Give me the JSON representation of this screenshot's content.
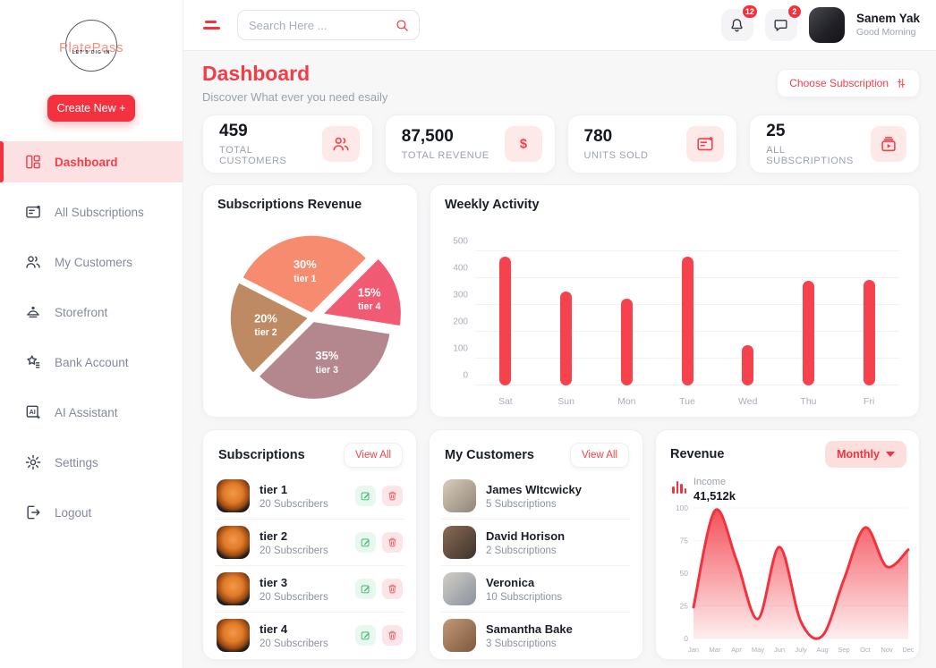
{
  "app": {
    "name": "PlatePass",
    "tagline": "LET'S DIG IN"
  },
  "colors": {
    "primary_red": "#F4323F",
    "bar_red": "#F6424C",
    "active_nav_bg": "#FBE1E2",
    "icon_bg_pink": "#FCE9E8",
    "content_bg": "#F7F7F8"
  },
  "sidebar": {
    "create_button_label": "Create New +",
    "items": [
      {
        "label": "Dashboard",
        "icon": "dashboard-icon",
        "active": true
      },
      {
        "label": "All Subscriptions",
        "icon": "list-icon",
        "active": false
      },
      {
        "label": "My Customers",
        "icon": "people-icon",
        "active": false
      },
      {
        "label": "Storefront",
        "icon": "cloche-icon",
        "active": false
      },
      {
        "label": "Bank Account",
        "icon": "star-lines-icon",
        "active": false
      },
      {
        "label": "AI Assistant",
        "icon": "ai-icon",
        "active": false
      },
      {
        "label": "Settings",
        "icon": "gear-icon",
        "active": false
      },
      {
        "label": "Logout",
        "icon": "logout-icon",
        "active": false
      }
    ]
  },
  "topbar": {
    "search_placeholder": "Search Here ...",
    "notification_badge": "12",
    "message_badge": "2",
    "user_name": "Sanem Yak",
    "user_greeting": "Good Morning"
  },
  "page_header": {
    "title": "Dashboard",
    "subtitle": "Discover What ever you need esaily",
    "action_label": "Choose Subscription"
  },
  "stats": [
    {
      "value": "459",
      "label": "TOTAL CUSTOMERS",
      "icon": "people-icon"
    },
    {
      "value": "87,500",
      "label": "TOTAL REVENUE",
      "icon": "dollar-icon"
    },
    {
      "value": "780",
      "label": "UNITS SOLD",
      "icon": "list-icon"
    },
    {
      "value": "25",
      "label": "ALL SUBSCRIPTIONS",
      "icon": "subscription-box-icon"
    }
  ],
  "chart_data": [
    {
      "id": "subscriptions-revenue",
      "type": "pie",
      "title": "Subscriptions Revenue",
      "slices": [
        {
          "label": "tier 1",
          "value": 30,
          "display": "30%",
          "color": "#F78B70"
        },
        {
          "label": "tier 4",
          "value": 15,
          "display": "15%",
          "color": "#F05A72"
        },
        {
          "label": "tier 3",
          "value": 35,
          "display": "35%",
          "color": "#B4868D"
        },
        {
          "label": "tier 2",
          "value": 20,
          "display": "20%",
          "color": "#BE8A63"
        }
      ],
      "start_angle_deg": -63,
      "labels_inside": true,
      "exploded": true
    },
    {
      "id": "weekly-activity",
      "type": "bar",
      "title": "Weekly Activity",
      "categories": [
        "Sat",
        "Sun",
        "Mon",
        "Tue",
        "Wed",
        "Thu",
        "Fri"
      ],
      "values": [
        480,
        350,
        325,
        480,
        150,
        390,
        395
      ],
      "ylim": [
        0,
        500
      ],
      "yticks": [
        0,
        100,
        200,
        300,
        400,
        500
      ],
      "bar_color": "#F6424C",
      "grid": true
    },
    {
      "id": "revenue-monthly",
      "type": "area",
      "title": "Revenue",
      "x": [
        "Jan",
        "Mar",
        "Apr",
        "May",
        "Jun",
        "July",
        "Aug",
        "Sep",
        "Oct",
        "Nov",
        "Dec"
      ],
      "values": [
        24,
        98,
        60,
        15,
        70,
        13,
        2,
        45,
        85,
        55,
        68
      ],
      "ylim": [
        0,
        100
      ],
      "yticks": [
        0,
        25,
        50,
        75,
        100
      ],
      "line_color": "#F2333E",
      "fill": "red-gradient",
      "grid": true,
      "legend": {
        "label": "Income",
        "value": "41,512k"
      }
    }
  ],
  "subscriptions_card": {
    "title": "Subscriptions",
    "view_all_label": "View All",
    "items": [
      {
        "name": "tier 1",
        "subscribers": "20 Subscribers"
      },
      {
        "name": "tier 2",
        "subscribers": "20 Subscribers"
      },
      {
        "name": "tier 3",
        "subscribers": "20 Subscribers"
      },
      {
        "name": "tier 4",
        "subscribers": "20 Subscribers"
      }
    ]
  },
  "customers_card": {
    "title": "My Customers",
    "view_all_label": "View All",
    "items": [
      {
        "name": "James WItcwicky",
        "subscriptions": "5 Subscriptions"
      },
      {
        "name": "David Horison",
        "subscriptions": "2 Subscriptions"
      },
      {
        "name": "Veronica",
        "subscriptions": "10 Subscriptions"
      },
      {
        "name": "Samantha Bake",
        "subscriptions": "3 Subscriptions"
      }
    ]
  },
  "revenue_card": {
    "title": "Revenue",
    "period_label": "Monthly",
    "legend_label": "Income",
    "legend_value": "41,512k"
  }
}
